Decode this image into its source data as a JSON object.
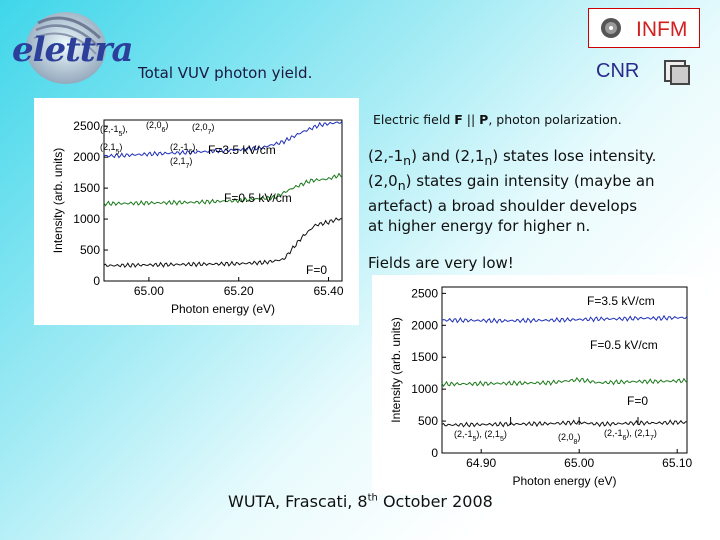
{
  "header": {
    "logo_text": "elettra",
    "title": "Total VUV photon yield.",
    "infm_label": "INFM",
    "cnr_label": "CNR"
  },
  "notes": {
    "field_note": "Electric field F || P, photon polarization.",
    "para_lines": [
      "(2,-1n) and (2,1n) states lose intensity.",
      "(2,0n) states gain intensity (maybe an",
      "artefact) a broad shoulder develops",
      "at higher energy for higher n."
    ],
    "fields_low": "Fields are very low!"
  },
  "footer": {
    "text": "WUTA, Frascati, 8th October 2008"
  },
  "colors": {
    "blue": "#1f2fb8",
    "green": "#1b7a1b",
    "black": "#111111"
  },
  "chart_data": [
    {
      "type": "line",
      "xlabel": "Photon energy (eV)",
      "ylabel": "Intensity (arb. units)",
      "xlim": [
        64.9,
        65.43
      ],
      "ylim": [
        0,
        2600
      ],
      "x_ticks": [
        "65.00",
        "65.20",
        "65.40"
      ],
      "y_ticks": [
        "0",
        "500",
        "1000",
        "1500",
        "2000",
        "2500"
      ],
      "series": [
        {
          "name": "F=3.5 kV/cm",
          "color": "#1f2fb8",
          "points": [
            [
              64.92,
              2020
            ],
            [
              65.0,
              2050
            ],
            [
              65.1,
              2080
            ],
            [
              65.2,
              2120
            ],
            [
              65.25,
              2150
            ],
            [
              65.3,
              2250
            ],
            [
              65.34,
              2400
            ],
            [
              65.38,
              2520
            ],
            [
              65.42,
              2560
            ]
          ]
        },
        {
          "name": "F=0.5 kV/cm",
          "color": "#1b7a1b",
          "points": [
            [
              64.92,
              1250
            ],
            [
              65.0,
              1260
            ],
            [
              65.1,
              1270
            ],
            [
              65.2,
              1300
            ],
            [
              65.28,
              1350
            ],
            [
              65.32,
              1500
            ],
            [
              65.36,
              1620
            ],
            [
              65.4,
              1650
            ],
            [
              65.42,
              1700
            ]
          ]
        },
        {
          "name": "F=0",
          "color": "#111111",
          "points": [
            [
              64.92,
              250
            ],
            [
              65.0,
              260
            ],
            [
              65.1,
              270
            ],
            [
              65.2,
              280
            ],
            [
              65.26,
              300
            ],
            [
              65.3,
              350
            ],
            [
              65.34,
              700
            ],
            [
              65.37,
              900
            ],
            [
              65.4,
              950
            ],
            [
              65.42,
              1000
            ]
          ]
        }
      ],
      "annotations": [
        "(2,-1n)",
        "(2,1n)",
        "(2,0n)",
        "(2,0n)",
        "(2,-1n)",
        "(2,1n)"
      ]
    },
    {
      "type": "line",
      "xlabel": "Photon energy (eV)",
      "ylabel": "Intensity (arb. units)",
      "xlim": [
        64.86,
        65.11
      ],
      "ylim": [
        0,
        2600
      ],
      "x_ticks": [
        "64.90",
        "65.00",
        "65.10"
      ],
      "y_ticks": [
        "0",
        "500",
        "1000",
        "1500",
        "2000",
        "2500"
      ],
      "series": [
        {
          "name": "F=3.5 kV/cm",
          "color": "#1f2fb8",
          "points": [
            [
              64.87,
              2080
            ],
            [
              64.92,
              2070
            ],
            [
              64.97,
              2080
            ],
            [
              65.0,
              2090
            ],
            [
              65.02,
              2100
            ],
            [
              65.04,
              2100
            ],
            [
              65.06,
              2110
            ],
            [
              65.08,
              2110
            ],
            [
              65.1,
              2120
            ]
          ]
        },
        {
          "name": "F=0.5 kV/cm",
          "color": "#1b7a1b",
          "points": [
            [
              64.87,
              1080
            ],
            [
              64.92,
              1090
            ],
            [
              64.97,
              1100
            ],
            [
              65.0,
              1150
            ],
            [
              65.02,
              1100
            ],
            [
              65.04,
              1110
            ],
            [
              65.06,
              1120
            ],
            [
              65.08,
              1120
            ],
            [
              65.1,
              1130
            ]
          ]
        },
        {
          "name": "F=0",
          "color": "#111111",
          "points": [
            [
              64.87,
              440
            ],
            [
              64.92,
              450
            ],
            [
              64.97,
              460
            ],
            [
              65.0,
              480
            ],
            [
              65.02,
              450
            ],
            [
              65.04,
              460
            ],
            [
              65.06,
              470
            ],
            [
              65.08,
              470
            ],
            [
              65.1,
              480
            ]
          ]
        }
      ],
      "peaks": [
        {
          "x": 64.93,
          "label": "(2,-1n), (2,1n)"
        },
        {
          "x": 65.0,
          "label": "(2,0n)"
        },
        {
          "x": 65.06,
          "label": "(2,-1n), (2,1n)"
        }
      ]
    }
  ]
}
